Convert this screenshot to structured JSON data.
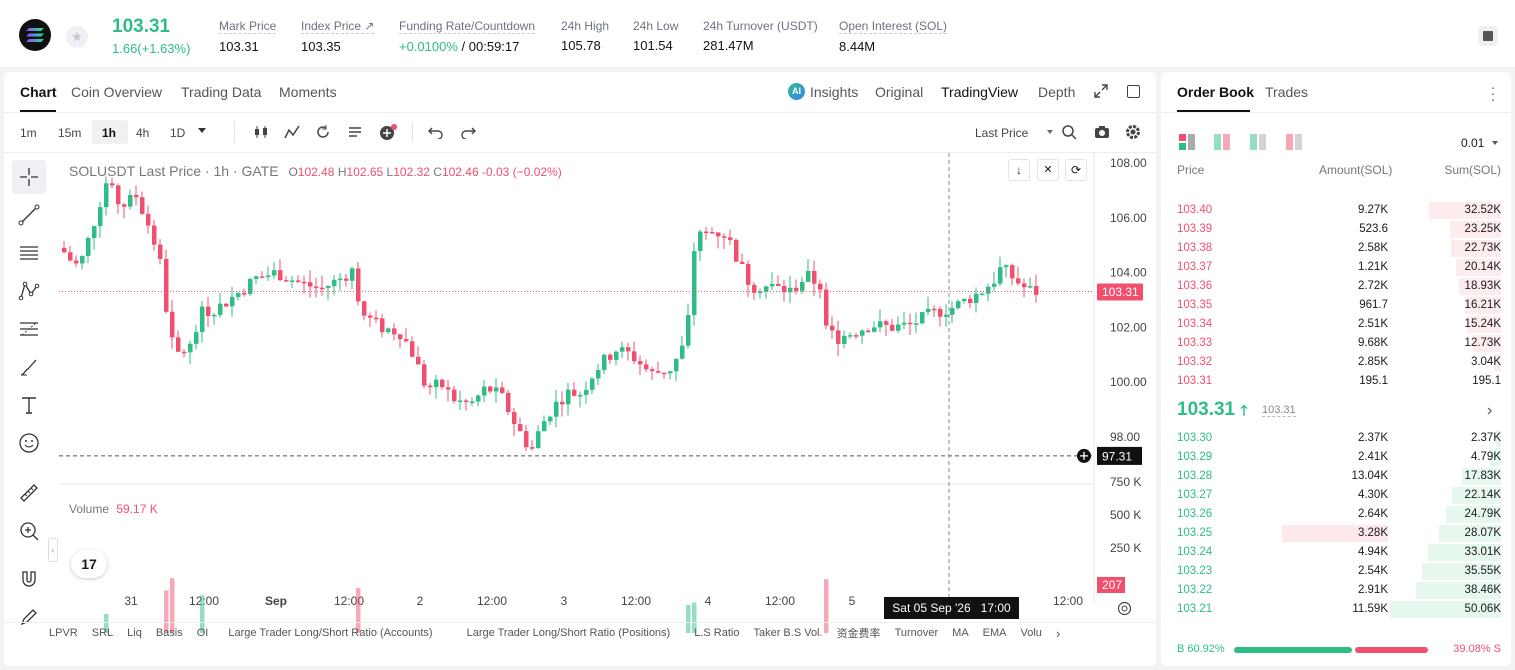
{
  "header": {
    "price": "103.31",
    "change": "1.66(+1.63%)",
    "stats": [
      {
        "label": "Mark Price",
        "value": "103.31"
      },
      {
        "label": "Index Price ↗",
        "value": "103.35"
      },
      {
        "label": "Funding Rate/Countdown",
        "value": "+0.0100%",
        "value2": "/ 00:59:17"
      },
      {
        "label": "24h High",
        "value": "105.78"
      },
      {
        "label": "24h Low",
        "value": "101.54"
      },
      {
        "label": "24h Turnover (USDT)",
        "value": "281.47M"
      },
      {
        "label": "Open Interest (SOL)",
        "value": "8.44M"
      }
    ]
  },
  "chart_tabs": {
    "chart": "Chart",
    "coin": "Coin Overview",
    "trading": "Trading Data",
    "moments": "Moments",
    "insights": "Insights",
    "original": "Original",
    "tradingview": "TradingView",
    "depth": "Depth"
  },
  "intervals": [
    "1m",
    "15m",
    "1h",
    "4h",
    "1D"
  ],
  "last_price_label": "Last Price",
  "legend": {
    "symbol": "SOLUSDT Last Price · 1h · GATE",
    "o": "O",
    "ov": "102.48",
    "h": "H",
    "hv": "102.65",
    "l": "L",
    "lv": "102.32",
    "c": "C",
    "cv": "102.46",
    "chg": "-0.03 (−0.02%)"
  },
  "volume_legend": {
    "label": "Volume",
    "value": "59.17 K"
  },
  "price_axis": [
    "108.00",
    "106.00",
    "104.00",
    "102.00",
    "100.00",
    "98.00"
  ],
  "price_tag": "103.31",
  "cross_tag": "97.31",
  "volume_axis": [
    "750 K",
    "500 K",
    "250 K"
  ],
  "vol_tag": "207",
  "time_axis": [
    "31",
    "12:00",
    "Sep",
    "12:00",
    "2",
    "12:00",
    "3",
    "12:00",
    "4",
    "12:00",
    "5",
    "12:00"
  ],
  "crosshair_time": "Sat 05 Sep '26",
  "crosshair_hour": "17:00",
  "bottom_tabs": [
    "LPVR",
    "SRL",
    "Liq",
    "Basis",
    "OI",
    "Large Trader Long/Short Ratio (Accounts)",
    "Large Trader Long/Short Ratio (Positions)",
    "L.S Ratio",
    "Taker B.S Vol.",
    "资金费率",
    "Turnover",
    "MA",
    "EMA",
    "Volu"
  ],
  "orderbook": {
    "tab1": "Order Book",
    "tab2": "Trades",
    "precision": "0.01",
    "col_price": "Price",
    "col_amount": "Amount(SOL)",
    "col_sum": "Sum(SOL)",
    "asks": [
      [
        "103.40",
        "9.27K",
        "32.52K"
      ],
      [
        "103.39",
        "523.6",
        "23.25K"
      ],
      [
        "103.38",
        "2.58K",
        "22.73K"
      ],
      [
        "103.37",
        "1.21K",
        "20.14K"
      ],
      [
        "103.36",
        "2.72K",
        "18.93K"
      ],
      [
        "103.35",
        "961.7",
        "16.21K"
      ],
      [
        "103.34",
        "2.51K",
        "15.24K"
      ],
      [
        "103.33",
        "9.68K",
        "12.73K"
      ],
      [
        "103.32",
        "2.85K",
        "3.04K"
      ],
      [
        "103.31",
        "195.1",
        "195.1"
      ]
    ],
    "mid": "103.31",
    "mid_ref": "103.31",
    "bids": [
      [
        "103.30",
        "2.37K",
        "2.37K"
      ],
      [
        "103.29",
        "2.41K",
        "4.79K"
      ],
      [
        "103.28",
        "13.04K",
        "17.83K"
      ],
      [
        "103.27",
        "4.30K",
        "22.14K"
      ],
      [
        "103.26",
        "2.64K",
        "24.79K"
      ],
      [
        "103.25",
        "3.28K",
        "28.07K"
      ],
      [
        "103.24",
        "4.94K",
        "33.01K"
      ],
      [
        "103.23",
        "2.54K",
        "35.55K"
      ],
      [
        "103.22",
        "2.91K",
        "38.46K"
      ],
      [
        "103.21",
        "11.59K",
        "50.06K"
      ]
    ],
    "buy_pct": "B 60.92%",
    "sell_pct": "39.08% S",
    "buy_ratio": 0.6092
  },
  "colors": {
    "up": "#2ebd85",
    "down": "#f0506e"
  }
}
